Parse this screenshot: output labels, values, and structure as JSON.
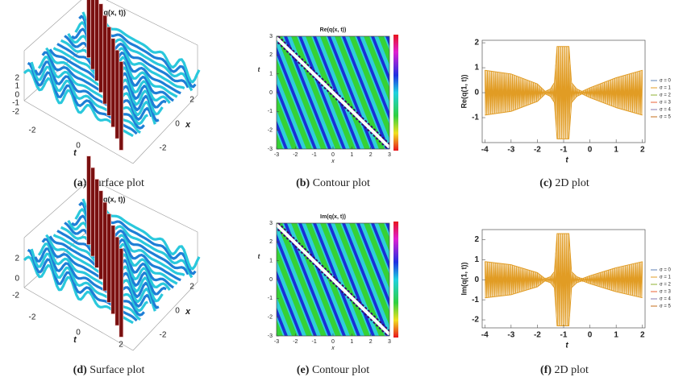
{
  "panels": [
    {
      "type": "surface",
      "title": "Re(q(x, t))",
      "label": "(a)",
      "caption": "Surface plot",
      "zticks": [
        2,
        1,
        0,
        -1,
        -2
      ],
      "tticks": [
        -2,
        0
      ],
      "xticks": [
        2,
        0,
        -2
      ],
      "tlabel": "t",
      "xlabel": "x"
    },
    {
      "type": "contour",
      "title": "Re(q(x, t))",
      "label": "(b)",
      "caption": "Contour plot",
      "xlim": [
        -3,
        3
      ],
      "ylim": [
        -3,
        3
      ],
      "xticks": [
        -3,
        -2,
        -1,
        0,
        1,
        2,
        3
      ],
      "yticks": [
        -3,
        -2,
        -1,
        0,
        1,
        2,
        3
      ],
      "xlabel": "x",
      "ylabel": "t"
    },
    {
      "type": "line",
      "label": "(c)",
      "caption": "2D plot",
      "ylabel": "Re(q(1, t))",
      "xlabel": "t",
      "xlim": [
        -4.1,
        2.1
      ],
      "ylim": [
        -2,
        2.1
      ],
      "xticks": [
        -4,
        -3,
        -2,
        -1,
        0,
        1,
        2
      ],
      "yticks": [
        -1,
        0,
        1,
        2
      ],
      "t": [
        -4,
        -3,
        -2,
        -1.7,
        -1.5,
        -1.35,
        -1.25,
        -0.8,
        -0.7,
        -0.5,
        -0.3,
        0,
        1,
        2
      ],
      "amplitude": [
        0.9,
        0.75,
        0.35,
        0.05,
        0.15,
        0.4,
        1.85,
        1.85,
        0.4,
        0.15,
        0.05,
        0.2,
        0.6,
        0.9
      ],
      "series": [
        {
          "name": "σ = 0",
          "color": "#5e81b5"
        },
        {
          "name": "σ = 1",
          "color": "#e19c24"
        },
        {
          "name": "σ = 2",
          "color": "#8fb032"
        },
        {
          "name": "σ = 3",
          "color": "#eb6235"
        },
        {
          "name": "σ = 4",
          "color": "#8778b3"
        },
        {
          "name": "σ = 5",
          "color": "#c56e1a"
        }
      ]
    },
    {
      "type": "surface",
      "title": "Im(q(x, t))",
      "label": "(d)",
      "caption": "Surface plot",
      "zticks": [
        2,
        0,
        -2
      ],
      "tticks": [
        -2,
        0,
        2
      ],
      "xticks": [
        2,
        0,
        -2
      ],
      "tlabel": "t",
      "xlabel": "x"
    },
    {
      "type": "contour",
      "title": "Im(q(x, t))",
      "label": "(e)",
      "caption": "Contour plot",
      "xlim": [
        -3,
        3
      ],
      "ylim": [
        -3,
        3
      ],
      "xticks": [
        -3,
        -2,
        -1,
        0,
        1,
        2,
        3
      ],
      "yticks": [
        -3,
        -2,
        -1,
        0,
        1,
        2,
        3
      ],
      "xlabel": "x",
      "ylabel": "t"
    },
    {
      "type": "line",
      "label": "(f)",
      "caption": "2D plot",
      "ylabel": "Im(q(1, t))",
      "xlabel": "t",
      "xlim": [
        -4.1,
        2.1
      ],
      "ylim": [
        -2.4,
        2.5
      ],
      "xticks": [
        -4,
        -3,
        -2,
        -1,
        0,
        1,
        2
      ],
      "yticks": [
        -2,
        -1,
        0,
        1,
        2
      ],
      "t": [
        -4,
        -3,
        -2,
        -1.7,
        -1.5,
        -1.35,
        -1.25,
        -0.8,
        -0.7,
        -0.5,
        -0.3,
        0,
        1,
        2
      ],
      "amplitude": [
        0.9,
        0.75,
        0.35,
        0.05,
        0.15,
        0.4,
        2.3,
        2.3,
        0.4,
        0.15,
        0.05,
        0.2,
        0.6,
        0.9
      ],
      "series": [
        {
          "name": "σ = 0",
          "color": "#5e81b5"
        },
        {
          "name": "σ = 1",
          "color": "#e19c24"
        },
        {
          "name": "σ = 2",
          "color": "#8fb032"
        },
        {
          "name": "σ = 3",
          "color": "#eb6235"
        },
        {
          "name": "σ = 4",
          "color": "#8778b3"
        },
        {
          "name": "σ = 5",
          "color": "#c56e1a"
        }
      ]
    }
  ]
}
